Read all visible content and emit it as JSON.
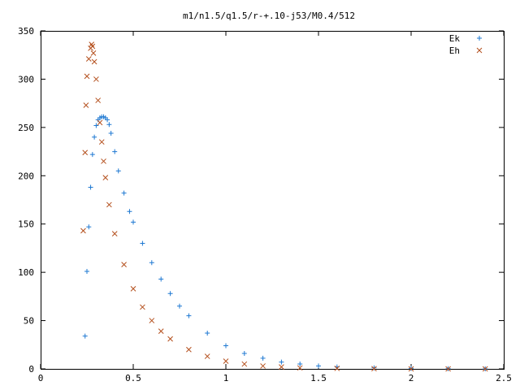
{
  "chart_data": {
    "type": "scatter",
    "title": "m1/n1.5/q1.5/r-+.10-j53/M0.4/512",
    "xlabel": "",
    "ylabel": "",
    "xlim": [
      0,
      2.5
    ],
    "ylim": [
      0,
      350
    ],
    "x_ticks": [
      "0",
      "0.5",
      "1",
      "1.5",
      "2",
      "2.5"
    ],
    "y_ticks": [
      "0",
      "50",
      "100",
      "150",
      "200",
      "250",
      "300",
      "350"
    ],
    "grid": false,
    "legend_position": "top-right",
    "series": [
      {
        "name": "Ek",
        "marker": "plus",
        "color": "#1e78d2",
        "x": [
          0.24,
          0.25,
          0.26,
          0.27,
          0.28,
          0.29,
          0.3,
          0.31,
          0.32,
          0.33,
          0.34,
          0.35,
          0.36,
          0.37,
          0.38,
          0.4,
          0.42,
          0.45,
          0.48,
          0.5,
          0.55,
          0.6,
          0.65,
          0.7,
          0.75,
          0.8,
          0.9,
          1.0,
          1.1,
          1.2,
          1.3,
          1.4,
          1.5,
          1.6,
          1.8,
          2.0,
          2.2,
          2.4
        ],
        "y": [
          34,
          101,
          147,
          188,
          222,
          240,
          252,
          258,
          260,
          261,
          261,
          260,
          258,
          253,
          244,
          225,
          205,
          182,
          163,
          152,
          130,
          110,
          93,
          78,
          65,
          55,
          37,
          24,
          16,
          11,
          7,
          5,
          3,
          2,
          1,
          0.5,
          0.2,
          0
        ]
      },
      {
        "name": "Eh",
        "marker": "cross",
        "color": "#b4501e",
        "x": [
          0.23,
          0.24,
          0.245,
          0.25,
          0.26,
          0.27,
          0.275,
          0.28,
          0.285,
          0.29,
          0.3,
          0.31,
          0.32,
          0.33,
          0.34,
          0.35,
          0.37,
          0.4,
          0.45,
          0.5,
          0.55,
          0.6,
          0.65,
          0.7,
          0.8,
          0.9,
          1.0,
          1.1,
          1.2,
          1.3,
          1.4,
          1.6,
          1.8,
          2.0,
          2.2,
          2.4
        ],
        "y": [
          143,
          224,
          273,
          303,
          321,
          332,
          336,
          334,
          327,
          318,
          300,
          278,
          255,
          235,
          215,
          198,
          170,
          140,
          108,
          83,
          64,
          50,
          39,
          31,
          20,
          13,
          8,
          5,
          3,
          2,
          1,
          0.5,
          0.2,
          0,
          0,
          0
        ]
      }
    ]
  }
}
